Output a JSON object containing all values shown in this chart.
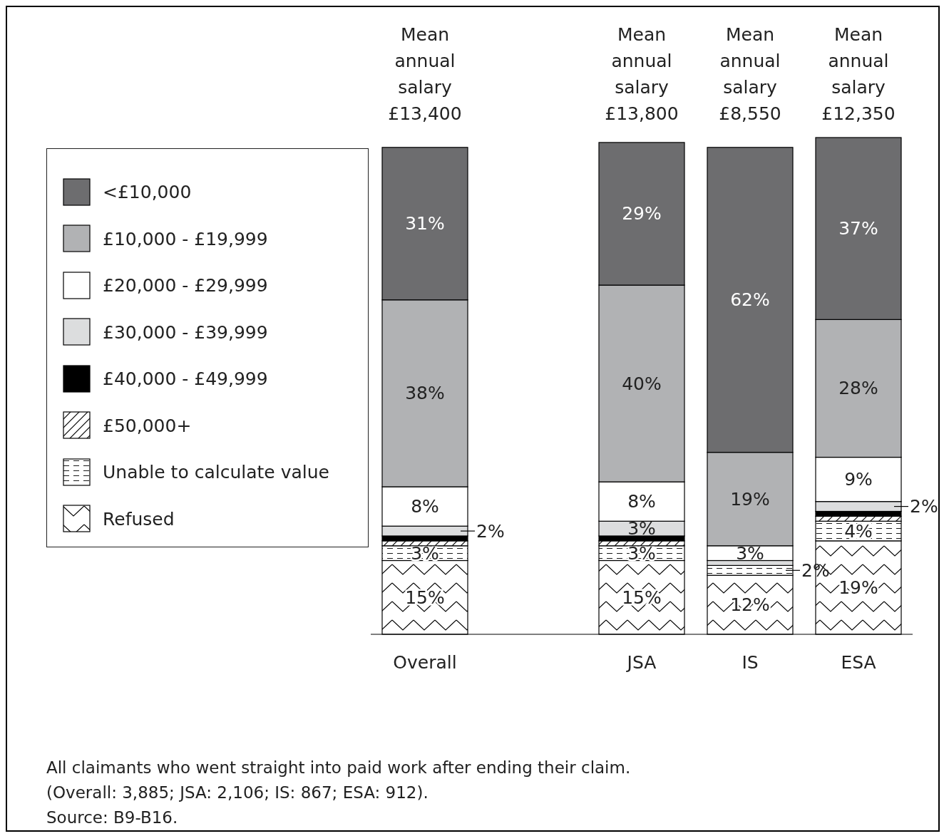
{
  "chart_data": {
    "type": "bar",
    "stacked": true,
    "categories": [
      "Overall",
      null,
      "JSA",
      "IS",
      "ESA"
    ],
    "series": [
      {
        "name": "Refused",
        "color": "#ffffff",
        "values": [
          15,
          null,
          15,
          12,
          19
        ],
        "value_labels": [
          "15%",
          null,
          "15%",
          "12%",
          "19%"
        ]
      },
      {
        "name": "Unable to calculate value",
        "color": "#ffffff",
        "values": [
          3,
          null,
          3,
          2,
          4
        ],
        "value_labels": [
          "3%",
          null,
          "3%",
          "2%",
          "4%"
        ]
      },
      {
        "name": "£50,000+",
        "color": "#ffffff",
        "values": [
          1,
          null,
          1,
          0,
          1
        ],
        "value_labels": [
          null,
          null,
          null,
          null,
          null
        ]
      },
      {
        "name": "£40,000 - £49,999",
        "color": "#000000",
        "values": [
          1,
          null,
          1,
          0,
          1
        ],
        "value_labels": [
          null,
          null,
          null,
          null,
          null
        ]
      },
      {
        "name": "£30,000 - £39,999",
        "color": "#dcddde",
        "values": [
          2,
          null,
          3,
          1,
          2
        ],
        "value_labels": [
          "2%",
          null,
          "3%",
          null,
          "2%"
        ]
      },
      {
        "name": "£20,000 - £29,999",
        "color": "#ffffff",
        "values": [
          8,
          null,
          8,
          3,
          9
        ],
        "value_labels": [
          "8%",
          null,
          "8%",
          "3%",
          "9%"
        ]
      },
      {
        "name": "£10,000 - £19,999",
        "color": "#b1b2b4",
        "values": [
          38,
          null,
          40,
          19,
          28
        ],
        "value_labels": [
          "38%",
          null,
          "40%",
          "19%",
          "28%"
        ]
      },
      {
        "name": "<£10,000",
        "color": "#6d6d6f",
        "values": [
          31,
          null,
          29,
          62,
          37
        ],
        "value_labels": [
          "31%",
          null,
          "29%",
          "62%",
          "37%"
        ]
      }
    ],
    "legend": "left",
    "annotations": [
      "Mean annual salary £13,400",
      "Mean annual salary £13,800",
      "Mean annual salary £8,550",
      "Mean annual salary £12,350",
      "All claimants who went straight into paid work after ending their claim.",
      "(Overall: 3,885; JSA: 2,106; IS: 867; ESA: 912).",
      "Source: B9-B16."
    ]
  }
}
